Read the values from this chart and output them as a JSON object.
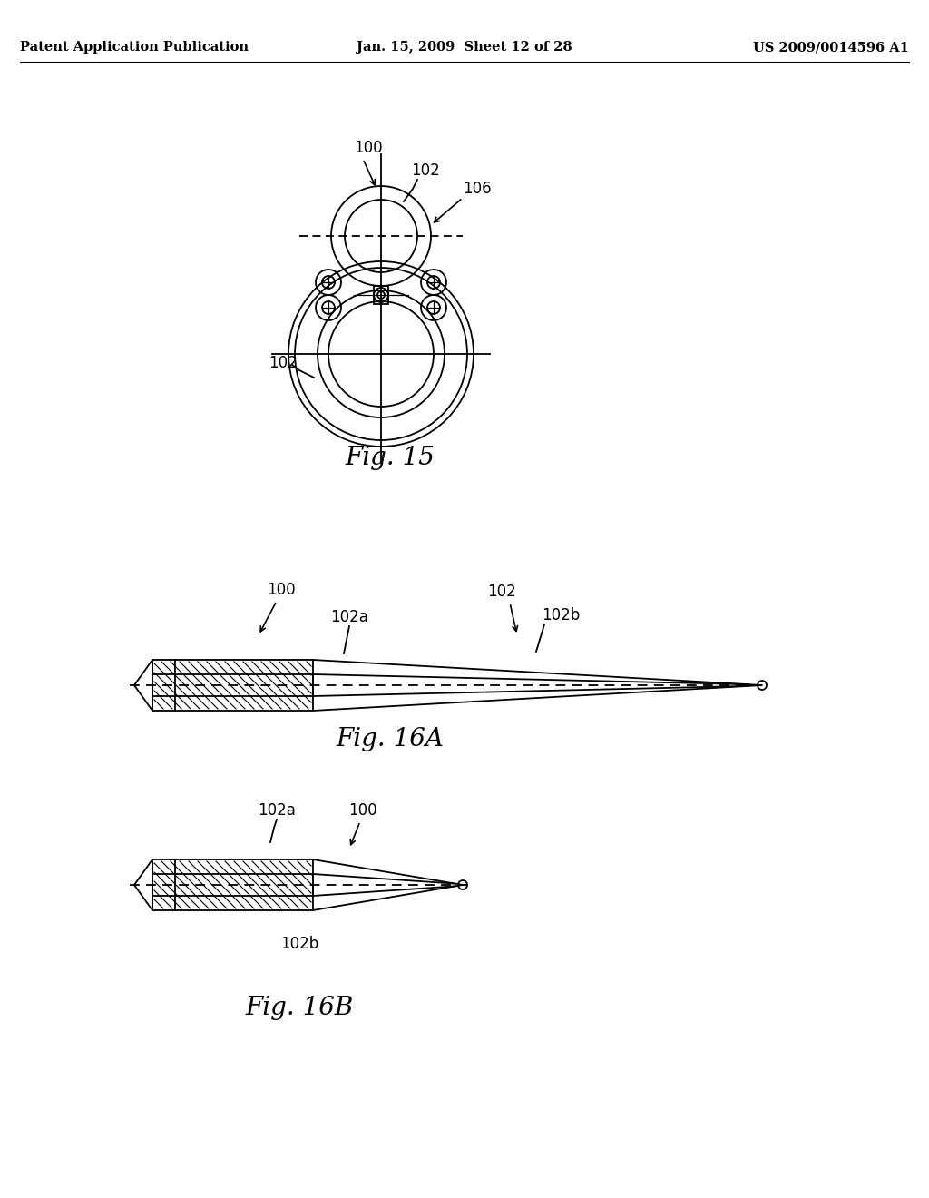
{
  "bg_color": "#ffffff",
  "header_left": "Patent Application Publication",
  "header_center": "Jan. 15, 2009  Sheet 12 of 28",
  "header_right": "US 2009/0014596 A1",
  "fig15_caption": "Fig. 15",
  "fig16a_caption": "Fig. 16A",
  "fig16b_caption": "Fig. 16B"
}
